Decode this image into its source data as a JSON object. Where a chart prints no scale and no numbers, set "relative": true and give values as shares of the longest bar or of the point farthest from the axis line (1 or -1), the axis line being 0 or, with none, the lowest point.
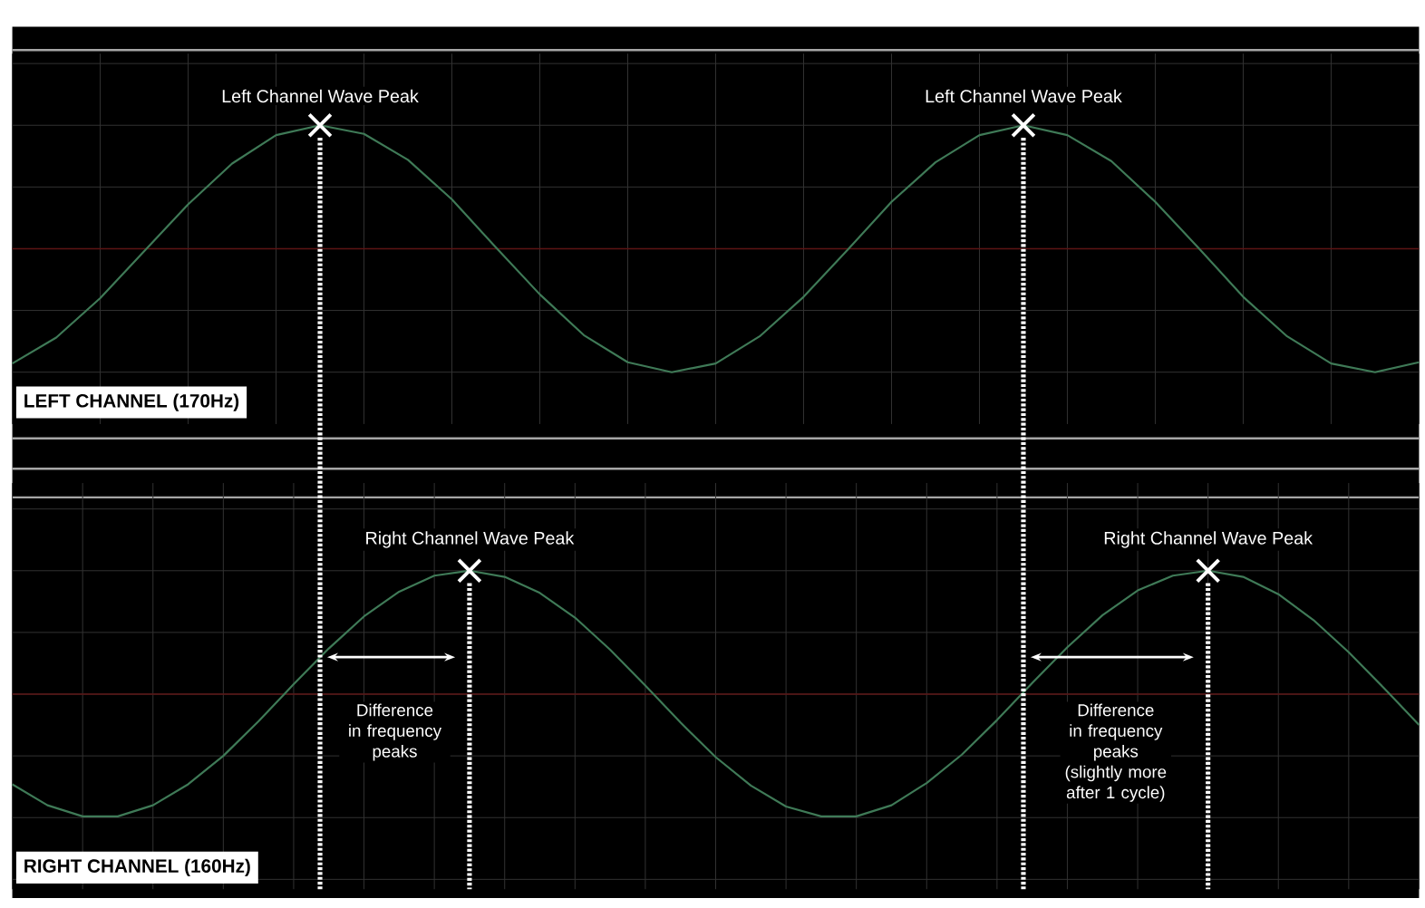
{
  "chart_data": [
    {
      "type": "line",
      "title": "LEFT CHANNEL (170Hz)",
      "relative": true,
      "grid": true,
      "tick_labels": false,
      "categories": [
        null,
        null,
        null,
        null,
        null,
        null,
        null,
        null,
        null,
        null,
        null,
        null,
        null,
        null,
        null,
        null,
        null,
        null,
        null,
        null,
        null,
        null,
        null,
        null,
        null,
        null,
        null,
        null,
        null,
        null,
        null,
        null,
        null
      ],
      "series": [
        {
          "color": "#3f7a57",
          "values": [
            -0.93,
            -0.72,
            -0.4,
            -0.02,
            0.36,
            0.69,
            0.92,
            1.0,
            0.93,
            0.72,
            0.4,
            0.01,
            -0.37,
            -0.7,
            -0.92,
            -1.0,
            -0.93,
            -0.71,
            -0.39,
            -0.01,
            0.38,
            0.7,
            0.92,
            1.0,
            0.92,
            0.71,
            0.38,
            0.0,
            -0.39,
            -0.71,
            -0.93,
            -1.0,
            -0.92
          ]
        }
      ],
      "ref_lines": [
        {
          "axis": "y",
          "value": 0,
          "color": "#5c1414",
          "line_style": "solid"
        }
      ],
      "annotations": [
        "Left Channel Wave Peak",
        "Left Channel Wave Peak"
      ]
    },
    {
      "type": "line",
      "title": "RIGHT CHANNEL (160Hz)",
      "relative": true,
      "grid": true,
      "tick_labels": false,
      "categories": [
        null,
        null,
        null,
        null,
        null,
        null,
        null,
        null,
        null,
        null,
        null,
        null,
        null,
        null,
        null,
        null,
        null,
        null,
        null,
        null,
        null,
        null,
        null,
        null,
        null,
        null,
        null,
        null,
        null,
        null,
        null,
        null,
        null,
        null,
        null,
        null,
        null,
        null,
        null,
        null,
        null
      ],
      "series": [
        {
          "color": "#3f7a57",
          "values": [
            -0.73,
            -0.9,
            -0.99,
            -0.99,
            -0.9,
            -0.73,
            -0.5,
            -0.22,
            0.08,
            0.37,
            0.63,
            0.83,
            0.96,
            1.0,
            0.95,
            0.82,
            0.62,
            0.36,
            0.07,
            -0.23,
            -0.51,
            -0.74,
            -0.91,
            -0.99,
            -0.99,
            -0.9,
            -0.72,
            -0.49,
            -0.21,
            0.09,
            0.38,
            0.64,
            0.84,
            0.96,
            1.0,
            0.95,
            0.81,
            0.6,
            0.34,
            0.05,
            -0.25
          ]
        }
      ],
      "ref_lines": [
        {
          "axis": "y",
          "value": 0,
          "color": "#5c1414",
          "line_style": "solid"
        }
      ],
      "annotations": [
        "Right Channel Wave Peak",
        "Right Channel Wave Peak",
        "Difference in frequency peaks",
        "Difference in frequency peaks (slightly more after 1 cycle)"
      ]
    }
  ]
}
